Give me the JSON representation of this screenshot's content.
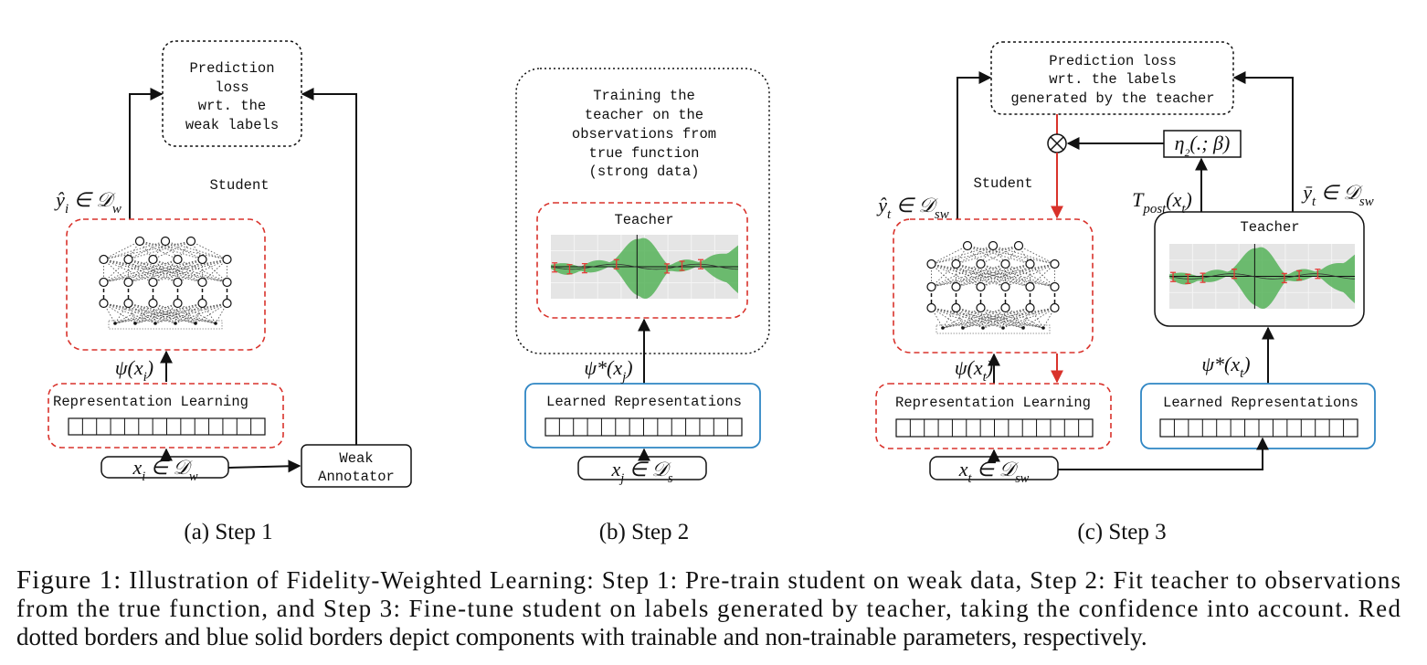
{
  "panel_a": {
    "loss_box": [
      "Prediction",
      "loss",
      "wrt. the",
      "weak labels"
    ],
    "student": "Student",
    "output": [
      "ŷ",
      "i",
      " ∈ 𝒟",
      "w"
    ],
    "features": [
      "ψ(x",
      "i",
      ")"
    ],
    "representation": "Representation Learning",
    "input": [
      "x",
      "i",
      " ∈ 𝒟",
      "w"
    ],
    "annotator": [
      "Weak",
      "Annotator"
    ],
    "caption": "(a) Step 1"
  },
  "panel_b": {
    "teacher_box": [
      "Training the",
      "teacher on the",
      "observations from",
      "true function",
      "(strong data)"
    ],
    "teacher": "Teacher",
    "features": [
      "ψ*(x",
      "j",
      ")"
    ],
    "representation": "Learned Representations",
    "input": [
      "x",
      "j",
      " ∈ 𝒟",
      "s"
    ],
    "caption": "(b) Step 2"
  },
  "panel_c": {
    "loss_box": [
      "Prediction loss",
      "wrt. the labels",
      "generated by the teacher"
    ],
    "confidence": [
      "η",
      "2",
      "(.; β)"
    ],
    "student": "Student",
    "student_output": [
      "ŷ",
      "t",
      " ∈ 𝒟",
      "sw"
    ],
    "teacher_posterior": [
      "T",
      "post",
      "(x",
      "t",
      ")"
    ],
    "teacher_output": [
      "ȳ",
      "t",
      " ∈ 𝒟",
      "sw"
    ],
    "teacher": "Teacher",
    "student_features": [
      "ψ(x",
      "t",
      ")"
    ],
    "teacher_features": [
      "ψ*(x",
      "t",
      ")"
    ],
    "student_representation": "Representation Learning",
    "teacher_representation": "Learned Representations",
    "input": [
      "x",
      "t",
      " ∈ 𝒟",
      "sw"
    ],
    "caption": "(c) Step 3"
  },
  "figure_caption": {
    "label": "Figure 1:",
    "lines": [
      "Illustration of Fidelity-Weighted Learning: Step 1: Pre-train student on weak data, Step 2: Fit teacher to observations",
      "from the true function, and Step 3: Fine-tune student on labels generated by teacher, taking the confidence into account. Red",
      "dotted borders and blue solid borders depict components with trainable and non-trainable parameters, respectively."
    ]
  }
}
